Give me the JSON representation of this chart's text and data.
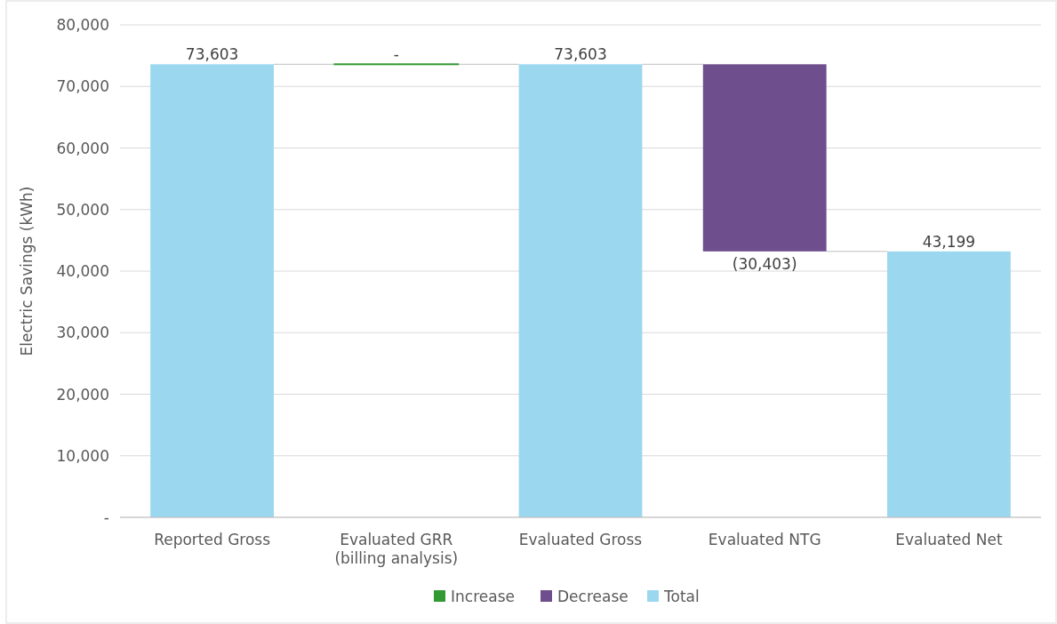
{
  "chart_data": {
    "type": "bar",
    "ylabel": "Electric Savings (kWh)",
    "categories": [
      "Reported Gross",
      "Evaluated GRR\n(billing analysis)",
      "Evaluated Gross",
      "Evaluated NTG",
      "Evaluated Net"
    ],
    "series": [
      {
        "name": "Increase",
        "color": "#339933",
        "values": [
          null,
          0,
          null,
          null,
          null
        ],
        "base": [
          null,
          73603,
          null,
          null,
          null
        ],
        "value_labels": [
          null,
          "-",
          null,
          null,
          null
        ]
      },
      {
        "name": "Decrease",
        "color": "#6f4e8e",
        "values": [
          null,
          null,
          null,
          -30403,
          null
        ],
        "base": [
          null,
          null,
          null,
          73603,
          null
        ],
        "value_labels": [
          null,
          null,
          null,
          "(30,403)",
          null
        ]
      },
      {
        "name": "Total",
        "color": "#9bd7ef",
        "values": [
          73603,
          null,
          73603,
          null,
          43199
        ],
        "base": [
          0,
          null,
          0,
          null,
          0
        ],
        "value_labels": [
          "73,603",
          null,
          "73,603",
          null,
          "43,199"
        ]
      }
    ],
    "ylim": [
      0,
      80000
    ],
    "yticks": [
      {
        "value": 0,
        "label": "-"
      },
      {
        "value": 10000,
        "label": "10,000"
      },
      {
        "value": 20000,
        "label": "20,000"
      },
      {
        "value": 30000,
        "label": "30,000"
      },
      {
        "value": 40000,
        "label": "40,000"
      },
      {
        "value": 50000,
        "label": "50,000"
      },
      {
        "value": 60000,
        "label": "60,000"
      },
      {
        "value": 70000,
        "label": "70,000"
      },
      {
        "value": 80000,
        "label": "80,000"
      }
    ],
    "grid": "y",
    "legend": "bottom"
  }
}
